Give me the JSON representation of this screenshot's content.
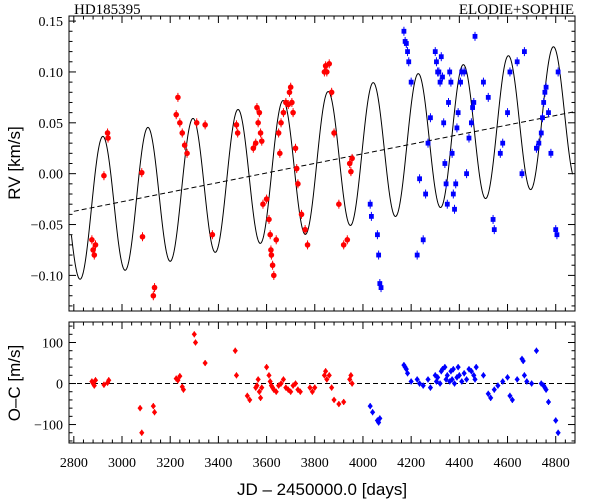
{
  "chart_data": {
    "type": "scatter",
    "title_left": "HD185395",
    "title_right": "ELODIE+SOPHIE",
    "xlabel": "JD – 2450000.0 [days]",
    "xlim": [
      2780,
      4880
    ],
    "xticks": [
      2800,
      3000,
      3200,
      3400,
      3600,
      3800,
      4000,
      4200,
      4400,
      4600,
      4800
    ],
    "top_panel": {
      "ylabel": "RV [km/s]",
      "ylim": [
        -0.135,
        0.155
      ],
      "yticks": [
        -0.1,
        -0.05,
        0.0,
        0.05,
        0.1,
        0.15
      ],
      "ytick_labels": [
        "−0.10",
        "−0.05",
        "0.00",
        "0.05",
        "0.10",
        "0.15"
      ],
      "trend": {
        "x0": 2800,
        "y0": -0.037,
        "x1": 4880,
        "y1": 0.061
      },
      "model": {
        "period_days": 187,
        "amplitude": 0.068,
        "phase_x0": 2920
      },
      "series": [
        {
          "name": "ELODIE",
          "color": "#ff0000",
          "marker": "circle",
          "points": [
            [
              2875,
              -0.065
            ],
            [
              2880,
              -0.075
            ],
            [
              2885,
              -0.08
            ],
            [
              2890,
              -0.07
            ],
            [
              2925,
              -0.002
            ],
            [
              2940,
              0.04
            ],
            [
              2942,
              0.035
            ],
            [
              3082,
              0.001
            ],
            [
              3085,
              -0.062
            ],
            [
              3130,
              -0.12
            ],
            [
              3135,
              -0.112
            ],
            [
              3225,
              0.058
            ],
            [
              3232,
              0.075
            ],
            [
              3240,
              0.05
            ],
            [
              3250,
              0.04
            ],
            [
              3260,
              0.028
            ],
            [
              3270,
              0.02
            ],
            [
              3310,
              0.05
            ],
            [
              3345,
              0.048
            ],
            [
              3375,
              -0.06
            ],
            [
              3475,
              0.048
            ],
            [
              3480,
              0.04
            ],
            [
              3545,
              0.025
            ],
            [
              3555,
              0.03
            ],
            [
              3560,
              0.065
            ],
            [
              3565,
              0.05
            ],
            [
              3570,
              0.06
            ],
            [
              3575,
              0.04
            ],
            [
              3580,
              0.032
            ],
            [
              3585,
              -0.03
            ],
            [
              3600,
              -0.025
            ],
            [
              3610,
              -0.045
            ],
            [
              3615,
              -0.06
            ],
            [
              3618,
              -0.075
            ],
            [
              3620,
              -0.08
            ],
            [
              3625,
              -0.09
            ],
            [
              3630,
              -0.1
            ],
            [
              3640,
              -0.065
            ],
            [
              3650,
              0.04
            ],
            [
              3655,
              0.02
            ],
            [
              3660,
              0.05
            ],
            [
              3670,
              0.06
            ],
            [
              3680,
              0.07
            ],
            [
              3690,
              0.068
            ],
            [
              3695,
              0.08
            ],
            [
              3700,
              0.085
            ],
            [
              3705,
              0.07
            ],
            [
              3710,
              0.06
            ],
            [
              3720,
              0.025
            ],
            [
              3725,
              0.005
            ],
            [
              3730,
              -0.01
            ],
            [
              3745,
              -0.04
            ],
            [
              3760,
              -0.055
            ],
            [
              3770,
              -0.07
            ],
            [
              3840,
              0.1
            ],
            [
              3845,
              0.106
            ],
            [
              3850,
              0.1
            ],
            [
              3860,
              0.108
            ],
            [
              3870,
              0.08
            ],
            [
              3880,
              0.04
            ],
            [
              3900,
              -0.03
            ],
            [
              3920,
              -0.07
            ],
            [
              3935,
              -0.065
            ],
            [
              3945,
              0.01
            ],
            [
              3950,
              0.002
            ],
            [
              3955,
              0.015
            ]
          ]
        },
        {
          "name": "SOPHIE",
          "color": "#0000ff",
          "marker": "square",
          "points": [
            [
              4030,
              -0.03
            ],
            [
              4035,
              -0.042
            ],
            [
              4060,
              -0.06
            ],
            [
              4065,
              -0.08
            ],
            [
              4070,
              -0.108
            ],
            [
              4075,
              -0.112
            ],
            [
              4170,
              0.14
            ],
            [
              4175,
              0.13
            ],
            [
              4180,
              0.128
            ],
            [
              4185,
              0.12
            ],
            [
              4190,
              0.11
            ],
            [
              4200,
              0.09
            ],
            [
              4225,
              -0.08
            ],
            [
              4235,
              -0.005
            ],
            [
              4250,
              -0.065
            ],
            [
              4260,
              -0.02
            ],
            [
              4270,
              0.03
            ],
            [
              4280,
              0.055
            ],
            [
              4300,
              0.12
            ],
            [
              4305,
              0.11
            ],
            [
              4310,
              0.1
            ],
            [
              4315,
              0.1
            ],
            [
              4320,
              0.09
            ],
            [
              4325,
              0.115
            ],
            [
              4330,
              0.095
            ],
            [
              4335,
              0.05
            ],
            [
              4340,
              0.01
            ],
            [
              4345,
              -0.01
            ],
            [
              4350,
              -0.03
            ],
            [
              4355,
              0.07
            ],
            [
              4360,
              0.1
            ],
            [
              4365,
              0.09
            ],
            [
              4370,
              0.02
            ],
            [
              4375,
              -0.02
            ],
            [
              4380,
              -0.035
            ],
            [
              4385,
              -0.01
            ],
            [
              4390,
              0.045
            ],
            [
              4395,
              0.06
            ],
            [
              4405,
              0.09
            ],
            [
              4410,
              0.1
            ],
            [
              4420,
              0.1
            ],
            [
              4430,
              0.0
            ],
            [
              4440,
              0.035
            ],
            [
              4450,
              0.05
            ],
            [
              4455,
              0.065
            ],
            [
              4460,
              0.07
            ],
            [
              4465,
              0.135
            ],
            [
              4500,
              0.09
            ],
            [
              4520,
              0.075
            ],
            [
              4540,
              -0.045
            ],
            [
              4545,
              -0.055
            ],
            [
              4570,
              0.02
            ],
            [
              4580,
              0.03
            ],
            [
              4600,
              0.06
            ],
            [
              4610,
              0.1
            ],
            [
              4640,
              0.11
            ],
            [
              4660,
              0.0
            ],
            [
              4670,
              0.12
            ],
            [
              4720,
              0.025
            ],
            [
              4730,
              0.03
            ],
            [
              4740,
              0.04
            ],
            [
              4745,
              0.055
            ],
            [
              4750,
              0.07
            ],
            [
              4755,
              0.08
            ],
            [
              4760,
              0.085
            ],
            [
              4770,
              0.06
            ],
            [
              4780,
              0.02
            ],
            [
              4800,
              -0.055
            ],
            [
              4805,
              -0.06
            ],
            [
              4810,
              0.1
            ]
          ]
        }
      ]
    },
    "bottom_panel": {
      "ylabel": "O–C [m/s]",
      "ylim": [
        -145,
        150
      ],
      "yticks": [
        -100,
        0,
        100
      ],
      "ytick_labels": [
        "−100",
        "0",
        "100"
      ],
      "series": [
        {
          "name": "ELODIE",
          "color": "#ff0000",
          "marker": "diamond",
          "points": [
            [
              2875,
              5
            ],
            [
              2880,
              0
            ],
            [
              2885,
              -5
            ],
            [
              2890,
              8
            ],
            [
              2925,
              -3
            ],
            [
              2940,
              2
            ],
            [
              2945,
              8
            ],
            [
              3075,
              -60
            ],
            [
              3082,
              -120
            ],
            [
              3130,
              -55
            ],
            [
              3135,
              -70
            ],
            [
              3225,
              12
            ],
            [
              3232,
              8
            ],
            [
              3240,
              18
            ],
            [
              3250,
              -8
            ],
            [
              3255,
              -15
            ],
            [
              3300,
              120
            ],
            [
              3305,
              100
            ],
            [
              3345,
              50
            ],
            [
              3470,
              80
            ],
            [
              3475,
              20
            ],
            [
              3520,
              -30
            ],
            [
              3530,
              -40
            ],
            [
              3555,
              -10
            ],
            [
              3560,
              -5
            ],
            [
              3565,
              10
            ],
            [
              3570,
              -20
            ],
            [
              3575,
              -35
            ],
            [
              3580,
              -10
            ],
            [
              3600,
              40
            ],
            [
              3610,
              20
            ],
            [
              3615,
              5
            ],
            [
              3620,
              -5
            ],
            [
              3625,
              -10
            ],
            [
              3630,
              -15
            ],
            [
              3640,
              -20
            ],
            [
              3650,
              -5
            ],
            [
              3660,
              0
            ],
            [
              3670,
              10
            ],
            [
              3680,
              -10
            ],
            [
              3690,
              -15
            ],
            [
              3700,
              -20
            ],
            [
              3710,
              -5
            ],
            [
              3720,
              0
            ],
            [
              3730,
              -15
            ],
            [
              3740,
              -20
            ],
            [
              3780,
              -10
            ],
            [
              3790,
              -20
            ],
            [
              3800,
              -10
            ],
            [
              3840,
              20
            ],
            [
              3845,
              30
            ],
            [
              3850,
              10
            ],
            [
              3860,
              20
            ],
            [
              3870,
              -10
            ],
            [
              3880,
              -40
            ],
            [
              3900,
              -50
            ],
            [
              3920,
              -45
            ],
            [
              3945,
              10
            ],
            [
              3950,
              20
            ],
            [
              3955,
              0
            ]
          ]
        },
        {
          "name": "SOPHIE",
          "color": "#0000ff",
          "marker": "diamond",
          "points": [
            [
              4030,
              -55
            ],
            [
              4040,
              -70
            ],
            [
              4060,
              -90
            ],
            [
              4065,
              -95
            ],
            [
              4070,
              -85
            ],
            [
              4170,
              45
            ],
            [
              4175,
              40
            ],
            [
              4180,
              35
            ],
            [
              4185,
              25
            ],
            [
              4200,
              5
            ],
            [
              4225,
              10
            ],
            [
              4235,
              0
            ],
            [
              4250,
              -5
            ],
            [
              4270,
              10
            ],
            [
              4280,
              -10
            ],
            [
              4300,
              20
            ],
            [
              4305,
              5
            ],
            [
              4310,
              15
            ],
            [
              4320,
              0
            ],
            [
              4325,
              30
            ],
            [
              4330,
              35
            ],
            [
              4340,
              40
            ],
            [
              4345,
              10
            ],
            [
              4350,
              20
            ],
            [
              4360,
              5
            ],
            [
              4365,
              30
            ],
            [
              4370,
              10
            ],
            [
              4375,
              35
            ],
            [
              4380,
              0
            ],
            [
              4390,
              15
            ],
            [
              4395,
              40
            ],
            [
              4400,
              20
            ],
            [
              4410,
              5
            ],
            [
              4420,
              25
            ],
            [
              4430,
              10
            ],
            [
              4440,
              35
            ],
            [
              4450,
              30
            ],
            [
              4460,
              20
            ],
            [
              4465,
              10
            ],
            [
              4470,
              40
            ],
            [
              4500,
              20
            ],
            [
              4520,
              -25
            ],
            [
              4530,
              -35
            ],
            [
              4545,
              -15
            ],
            [
              4560,
              -5
            ],
            [
              4580,
              5
            ],
            [
              4600,
              15
            ],
            [
              4610,
              -30
            ],
            [
              4620,
              -40
            ],
            [
              4640,
              10
            ],
            [
              4660,
              60
            ],
            [
              4665,
              55
            ],
            [
              4670,
              20
            ],
            [
              4680,
              5
            ],
            [
              4700,
              0
            ],
            [
              4720,
              80
            ],
            [
              4740,
              0
            ],
            [
              4750,
              -5
            ],
            [
              4755,
              -10
            ],
            [
              4760,
              -15
            ],
            [
              4770,
              -45
            ],
            [
              4800,
              -90
            ],
            [
              4810,
              -120
            ]
          ]
        }
      ]
    }
  }
}
